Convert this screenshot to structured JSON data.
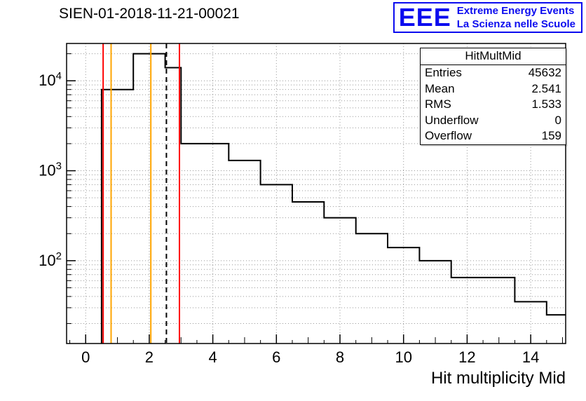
{
  "title": "SIEN-01-2018-11-21-00021",
  "logo": {
    "acronym": "EEE",
    "line1": "Extreme Energy Events",
    "line2": "La Scienza nelle Scuole",
    "color": "#0b0bef"
  },
  "stats_box": {
    "title": "HitMultMid",
    "rows": [
      {
        "label": "Entries",
        "value": "45632"
      },
      {
        "label": "Mean",
        "value": "2.541"
      },
      {
        "label": "RMS",
        "value": "1.533"
      },
      {
        "label": "Underflow",
        "value": "0"
      },
      {
        "label": "Overflow",
        "value": "159"
      }
    ]
  },
  "chart_data": {
    "type": "bar",
    "style": "step-histogram",
    "title": "SIEN-01-2018-11-21-00021",
    "xlabel": "Hit multiplicity Mid",
    "ylabel": "",
    "yscale": "log",
    "grid": true,
    "xlim": [
      -0.6,
      15.1
    ],
    "ylim": [
      12,
      26000
    ],
    "bin_edges": [
      0.5,
      1.5,
      2.5,
      3.0,
      4.5,
      5.5,
      6.5,
      7.5,
      8.5,
      9.5,
      10.5,
      11.5,
      13.5,
      14.5,
      15.1
    ],
    "counts": [
      8000,
      20000,
      14000,
      2000,
      1300,
      700,
      450,
      300,
      200,
      140,
      100,
      65,
      35,
      25
    ],
    "x_major_ticks": [
      0,
      2,
      4,
      6,
      8,
      10,
      12,
      14
    ],
    "y_decade_exponents": [
      2,
      3,
      4
    ],
    "line_color": "#000000",
    "marker_lines": [
      {
        "x": 0.55,
        "color": "#ff0000",
        "style": "solid"
      },
      {
        "x": 0.8,
        "color": "#ffa500",
        "style": "solid"
      },
      {
        "x": 2.05,
        "color": "#ffa500",
        "style": "solid"
      },
      {
        "x": 2.54,
        "color": "#000000",
        "style": "dashed"
      },
      {
        "x": 2.95,
        "color": "#ff0000",
        "style": "solid"
      }
    ]
  }
}
